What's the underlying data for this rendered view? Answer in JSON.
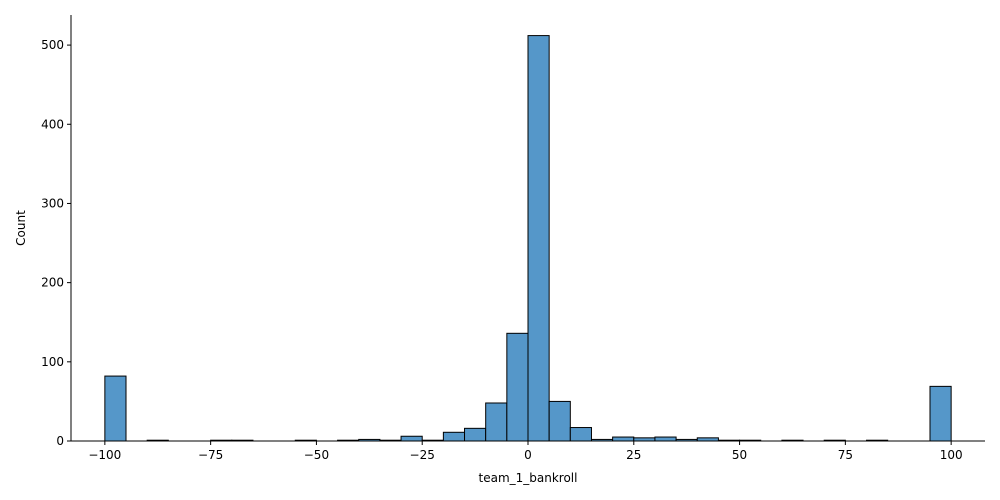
{
  "chart_data": {
    "type": "histogram",
    "xlabel": "team_1_bankroll",
    "ylabel": "Count",
    "xlim": [
      -108,
      108
    ],
    "ylim": [
      0,
      538
    ],
    "x_ticks": [
      -100,
      -75,
      -50,
      -25,
      0,
      25,
      50,
      75,
      100
    ],
    "x_tick_labels": [
      "−100",
      "−75",
      "−50",
      "−25",
      "0",
      "25",
      "50",
      "75",
      "100"
    ],
    "y_ticks": [
      0,
      100,
      200,
      300,
      400,
      500
    ],
    "y_tick_labels": [
      "0",
      "100",
      "200",
      "300",
      "400",
      "500"
    ],
    "bin_width": 5,
    "bins": [
      {
        "start": -100,
        "count": 82
      },
      {
        "start": -95,
        "count": 0
      },
      {
        "start": -90,
        "count": 1
      },
      {
        "start": -85,
        "count": 0
      },
      {
        "start": -80,
        "count": 0
      },
      {
        "start": -75,
        "count": 1
      },
      {
        "start": -70,
        "count": 1
      },
      {
        "start": -65,
        "count": 0
      },
      {
        "start": -60,
        "count": 0
      },
      {
        "start": -55,
        "count": 1
      },
      {
        "start": -50,
        "count": 0
      },
      {
        "start": -45,
        "count": 1
      },
      {
        "start": -40,
        "count": 2
      },
      {
        "start": -35,
        "count": 1
      },
      {
        "start": -30,
        "count": 6
      },
      {
        "start": -25,
        "count": 1
      },
      {
        "start": -20,
        "count": 11
      },
      {
        "start": -15,
        "count": 16
      },
      {
        "start": -10,
        "count": 48
      },
      {
        "start": -5,
        "count": 136
      },
      {
        "start": 0,
        "count": 512
      },
      {
        "start": 5,
        "count": 50
      },
      {
        "start": 10,
        "count": 17
      },
      {
        "start": 15,
        "count": 2
      },
      {
        "start": 20,
        "count": 5
      },
      {
        "start": 25,
        "count": 4
      },
      {
        "start": 30,
        "count": 5
      },
      {
        "start": 35,
        "count": 2
      },
      {
        "start": 40,
        "count": 4
      },
      {
        "start": 45,
        "count": 1
      },
      {
        "start": 50,
        "count": 1
      },
      {
        "start": 55,
        "count": 0
      },
      {
        "start": 60,
        "count": 1
      },
      {
        "start": 65,
        "count": 0
      },
      {
        "start": 70,
        "count": 1
      },
      {
        "start": 75,
        "count": 0
      },
      {
        "start": 80,
        "count": 1
      },
      {
        "start": 85,
        "count": 0
      },
      {
        "start": 90,
        "count": 0
      },
      {
        "start": 95,
        "count": 69
      }
    ],
    "colors": {
      "bar_fill": "#5597c9",
      "bar_edge": "#000000"
    }
  }
}
